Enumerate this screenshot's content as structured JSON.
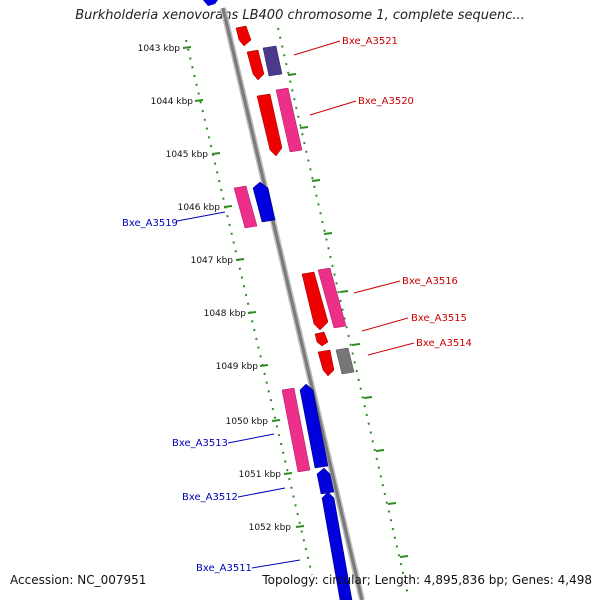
{
  "title": "Burkholderia xenovorans LB400 chromosome 1, complete sequenc...",
  "accession": "Accession: NC_007951",
  "topology": "Topology: circular; Length: 4,895,836 bp; Genes: 4,498",
  "colors": {
    "red": "#ee0000",
    "pink": "#ee2f8a",
    "blue": "#0000dd",
    "slate": "#4a3a8a",
    "gray": "#777777",
    "scale": "#2e8b22",
    "label_red": "#cc0000",
    "label_blue": "#0000bb"
  },
  "ticks": [
    "1043 kbp",
    "1044 kbp",
    "1045 kbp",
    "1046 kbp",
    "1047 kbp",
    "1048 kbp",
    "1049 kbp",
    "1050 kbp",
    "1051 kbp",
    "1052 kbp"
  ],
  "labels": {
    "a3521": "Bxe_A3521",
    "a3520": "Bxe_A3520",
    "a3519": "Bxe_A3519",
    "a3516": "Bxe_A3516",
    "a3515": "Bxe_A3515",
    "a3514": "Bxe_A3514",
    "a3513": "Bxe_A3513",
    "a3512": "Bxe_A3512",
    "a3511": "Bxe_A3511"
  }
}
